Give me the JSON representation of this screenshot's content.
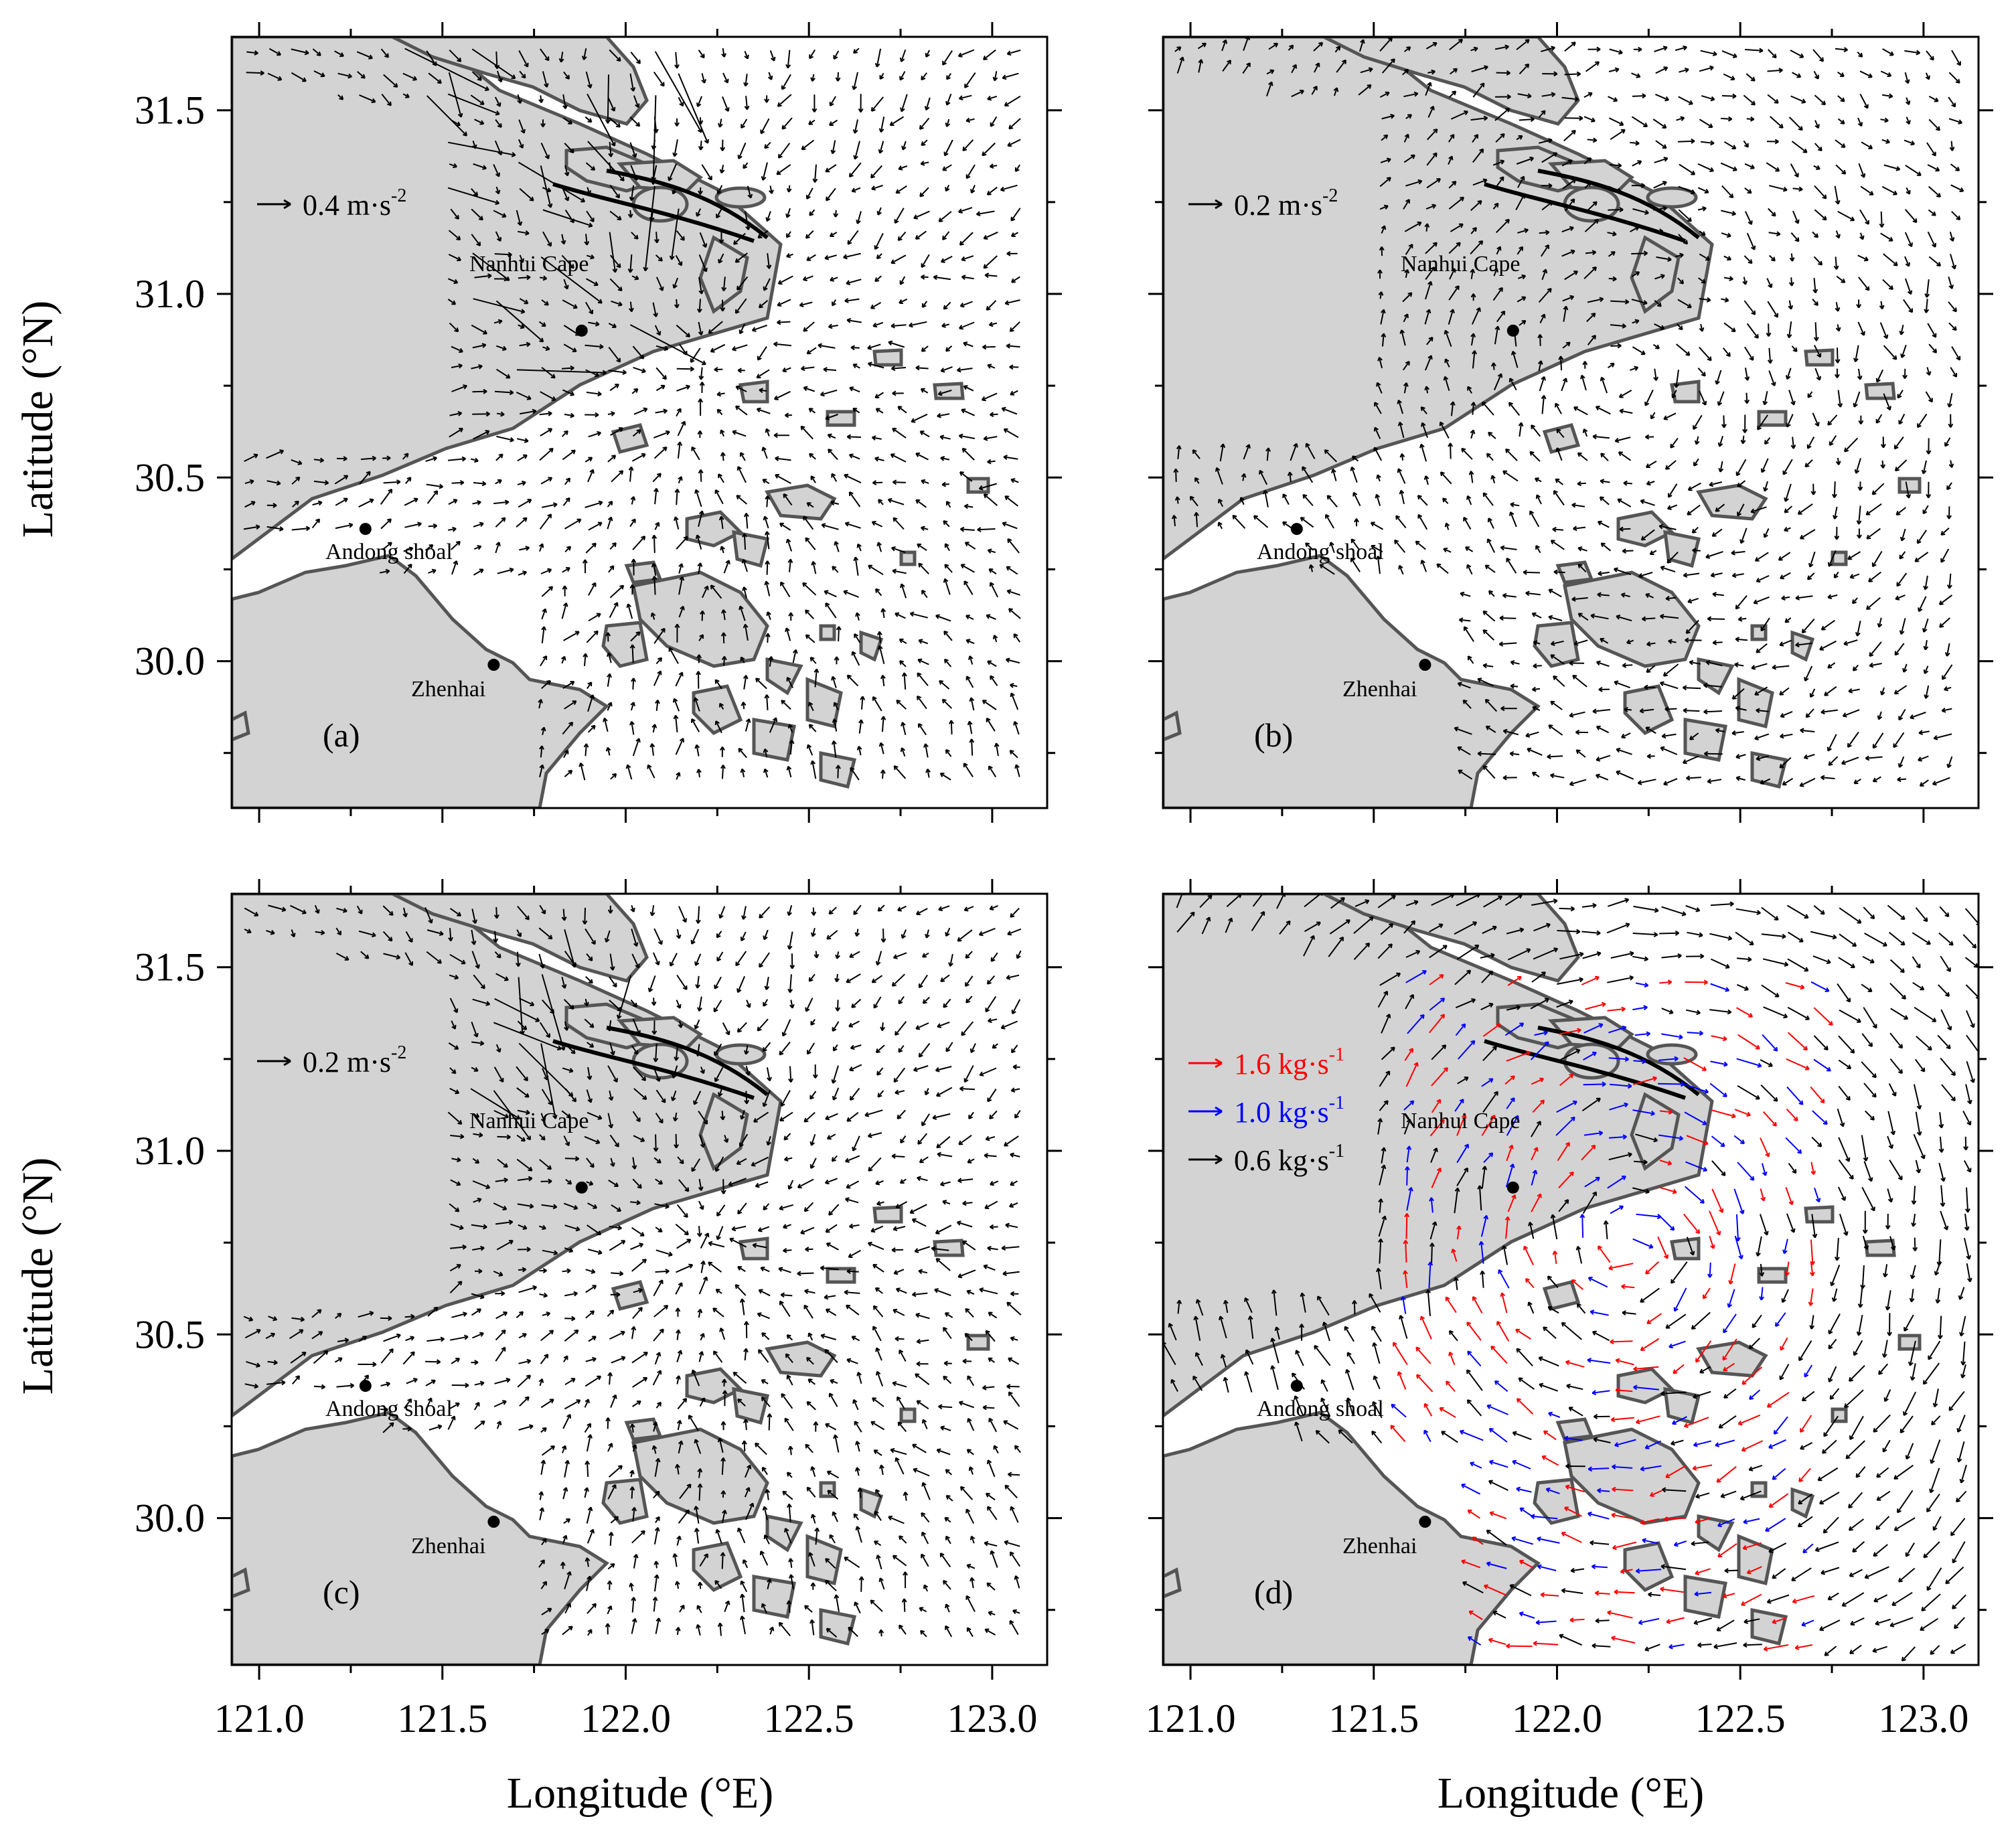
{
  "figure": {
    "x_label": "Longitude (°E)",
    "y_label": "Latitude (°N)",
    "x_ticks": [
      "121.0",
      "121.5",
      "122.0",
      "122.5",
      "123.0"
    ],
    "y_ticks": [
      "31.5",
      "31.0",
      "30.5",
      "30.0"
    ]
  },
  "places": {
    "nanhui": "Nanhui Cape",
    "andong": "Andong shoal",
    "zhenhai": "Zhenhai"
  },
  "panels": [
    {
      "id": "a",
      "label": "(a)",
      "scale": [
        {
          "value": "0.4",
          "unit": "m·s",
          "exp": "-2",
          "color": "#000000"
        }
      ]
    },
    {
      "id": "b",
      "label": "(b)",
      "scale": [
        {
          "value": "0.2",
          "unit": "m·s",
          "exp": "-2",
          "color": "#000000"
        }
      ]
    },
    {
      "id": "c",
      "label": "(c)",
      "scale": [
        {
          "value": "0.2",
          "unit": "m·s",
          "exp": "-2",
          "color": "#000000"
        }
      ]
    },
    {
      "id": "d",
      "label": "(d)",
      "scale": [
        {
          "value": "1.6",
          "unit": "kg·s",
          "exp": "-1",
          "color": "#ff0000"
        },
        {
          "value": "1.0",
          "unit": "kg·s",
          "exp": "-1",
          "color": "#0000ff"
        },
        {
          "value": "0.6",
          "unit": "kg·s",
          "exp": "-1",
          "color": "#000000"
        }
      ]
    }
  ],
  "colors": {
    "land": "#d3d3d3",
    "coast": "#555555",
    "arrow": "#000000"
  }
}
